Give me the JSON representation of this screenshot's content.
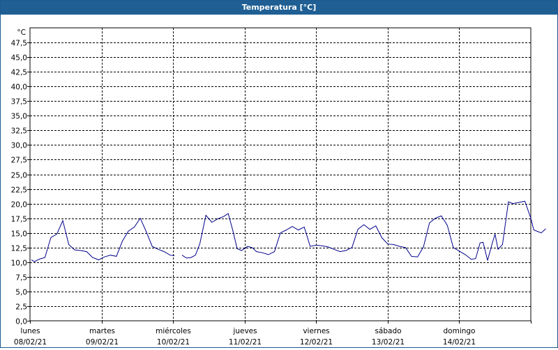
{
  "window": {
    "title": "Temperatura [°C]"
  },
  "chart_data": {
    "type": "line",
    "title": "Temperatura [°C]",
    "ylabel": "°C",
    "ylim": [
      0,
      50
    ],
    "yticks": [
      "0,0",
      "2,5",
      "5,0",
      "7,5",
      "10,0",
      "12,5",
      "15,0",
      "17,5",
      "20,0",
      "22,5",
      "25,0",
      "27,5",
      "30,0",
      "32,5",
      "35,0",
      "37,5",
      "40,0",
      "42,5",
      "45,0",
      "47,5"
    ],
    "xlim": [
      "2021-02-08T00:00",
      "2021-02-15T00:00"
    ],
    "xticks": [
      {
        "day": "lunes",
        "date": "08/02/21"
      },
      {
        "day": "martes",
        "date": "09/02/21"
      },
      {
        "day": "miércoles",
        "date": "10/02/21"
      },
      {
        "day": "jueves",
        "date": "11/02/21"
      },
      {
        "day": "viernes",
        "date": "12/02/21"
      },
      {
        "day": "sábado",
        "date": "13/02/21"
      },
      {
        "day": "domingo",
        "date": "14/02/21"
      }
    ],
    "grid": true,
    "series": [
      {
        "color": "#00008b",
        "segments": [
          [
            [
              "2021-02-08T00:30",
              10.4
            ],
            [
              "2021-02-08T01:30",
              10.1
            ],
            [
              "2021-02-08T03:00",
              10.5
            ],
            [
              "2021-02-08T05:00",
              10.8
            ],
            [
              "2021-02-08T07:00",
              14.2
            ],
            [
              "2021-02-08T09:00",
              14.8
            ],
            [
              "2021-02-08T11:00",
              17.1
            ],
            [
              "2021-02-08T13:00",
              13.0
            ],
            [
              "2021-02-08T15:00",
              12.1
            ],
            [
              "2021-02-08T17:00",
              12.0
            ],
            [
              "2021-02-08T19:00",
              11.8
            ],
            [
              "2021-02-08T21:00",
              10.8
            ],
            [
              "2021-02-08T23:00",
              10.4
            ],
            [
              "2021-02-09T01:00",
              10.9
            ],
            [
              "2021-02-09T03:00",
              11.2
            ],
            [
              "2021-02-09T05:00",
              11.0
            ],
            [
              "2021-02-09T07:00",
              13.6
            ],
            [
              "2021-02-09T09:00",
              15.3
            ],
            [
              "2021-02-09T11:00",
              16.0
            ],
            [
              "2021-02-09T13:00",
              17.5
            ],
            [
              "2021-02-09T15:00",
              15.2
            ],
            [
              "2021-02-09T17:00",
              12.7
            ],
            [
              "2021-02-09T19:00",
              12.2
            ],
            [
              "2021-02-09T21:00",
              11.8
            ],
            [
              "2021-02-09T23:00",
              11.2
            ],
            [
              "2021-02-10T00:30",
              11.1
            ]
          ],
          [
            [
              "2021-02-10T03:00",
              11.2
            ],
            [
              "2021-02-10T04:30",
              10.7
            ],
            [
              "2021-02-10T06:00",
              10.8
            ],
            [
              "2021-02-10T07:30",
              11.2
            ],
            [
              "2021-02-10T09:00",
              13.2
            ],
            [
              "2021-02-10T11:00",
              18.0
            ],
            [
              "2021-02-10T13:00",
              16.8
            ],
            [
              "2021-02-10T15:00",
              17.4
            ],
            [
              "2021-02-10T17:00",
              17.8
            ],
            [
              "2021-02-10T18:30",
              18.3
            ],
            [
              "2021-02-10T20:00",
              15.5
            ],
            [
              "2021-02-10T21:30",
              12.3
            ],
            [
              "2021-02-10T23:00",
              12.0
            ],
            [
              "2021-02-11T01:00",
              12.7
            ],
            [
              "2021-02-11T02:30",
              12.5
            ],
            [
              "2021-02-11T04:00",
              11.8
            ],
            [
              "2021-02-11T06:00",
              11.6
            ],
            [
              "2021-02-11T08:00",
              11.3
            ],
            [
              "2021-02-11T10:00",
              11.8
            ],
            [
              "2021-02-11T12:00",
              15.0
            ],
            [
              "2021-02-11T14:00",
              15.5
            ],
            [
              "2021-02-11T16:00",
              16.1
            ],
            [
              "2021-02-11T18:00",
              15.5
            ],
            [
              "2021-02-11T20:00",
              16.0
            ],
            [
              "2021-02-11T22:00",
              12.7
            ],
            [
              "2021-02-12T00:00",
              12.9
            ],
            [
              "2021-02-12T02:00",
              12.8
            ],
            [
              "2021-02-12T04:00",
              12.6
            ],
            [
              "2021-02-12T06:00",
              12.2
            ],
            [
              "2021-02-12T08:00",
              11.8
            ],
            [
              "2021-02-12T10:00",
              12.0
            ],
            [
              "2021-02-12T12:00",
              12.5
            ],
            [
              "2021-02-12T14:00",
              15.6
            ],
            [
              "2021-02-12T16:00",
              16.4
            ],
            [
              "2021-02-12T18:00",
              15.6
            ],
            [
              "2021-02-12T20:00",
              16.2
            ],
            [
              "2021-02-12T22:00",
              14.2
            ],
            [
              "2021-02-13T00:00",
              13.1
            ],
            [
              "2021-02-13T02:00",
              13.0
            ],
            [
              "2021-02-13T04:00",
              12.7
            ],
            [
              "2021-02-13T06:00",
              12.5
            ],
            [
              "2021-02-13T08:00",
              11.0
            ],
            [
              "2021-02-13T10:00",
              10.9
            ],
            [
              "2021-02-13T12:00",
              12.6
            ],
            [
              "2021-02-13T14:00",
              16.7
            ],
            [
              "2021-02-13T16:00",
              17.5
            ],
            [
              "2021-02-13T18:00",
              17.9
            ],
            [
              "2021-02-13T20:00",
              16.3
            ],
            [
              "2021-02-13T22:00",
              12.5
            ],
            [
              "2021-02-14T00:00",
              11.9
            ],
            [
              "2021-02-14T02:00",
              11.3
            ],
            [
              "2021-02-14T04:00",
              10.5
            ],
            [
              "2021-02-14T05:30",
              10.6
            ],
            [
              "2021-02-14T07:00",
              13.3
            ],
            [
              "2021-02-14T08:00",
              13.4
            ],
            [
              "2021-02-14T09:30",
              10.3
            ],
            [
              "2021-02-14T11:00",
              13.1
            ],
            [
              "2021-02-14T12:00",
              14.8
            ],
            [
              "2021-02-14T13:00",
              12.2
            ],
            [
              "2021-02-14T14:30",
              13.0
            ],
            [
              "2021-02-14T16:30",
              20.3
            ],
            [
              "2021-02-14T18:00",
              20.0
            ],
            [
              "2021-02-14T20:00",
              20.2
            ],
            [
              "2021-02-14T22:00",
              20.4
            ],
            [
              "2021-02-15T00:00",
              17.5
            ],
            [
              "2021-02-15T01:00",
              15.5
            ],
            [
              "2021-02-15T02:30",
              15.2
            ],
            [
              "2021-02-15T03:30",
              15.0
            ],
            [
              "2021-02-15T05:00",
              15.7
            ]
          ]
        ]
      }
    ]
  }
}
